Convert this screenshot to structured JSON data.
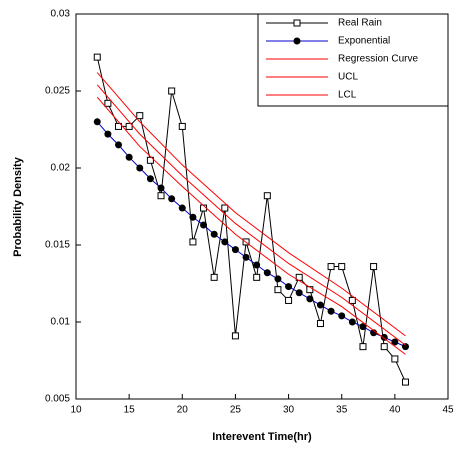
{
  "chart_data": {
    "type": "line",
    "xlabel": "Interevent Time(hr)",
    "ylabel": "Probability Density",
    "xlim": [
      10,
      45
    ],
    "xticks": [
      10,
      15,
      20,
      25,
      30,
      35,
      40,
      45
    ],
    "ylim": [
      0.005,
      0.03
    ],
    "yticks": [
      0.005,
      0.01,
      0.015,
      0.02,
      0.025,
      0.03
    ],
    "series": [
      {
        "name": "Real Rain",
        "color": "#000000",
        "marker": "open-square",
        "x": [
          12,
          13,
          14,
          15,
          16,
          17,
          18,
          19,
          20,
          21,
          22,
          23,
          24,
          25,
          26,
          27,
          28,
          29,
          30,
          31,
          32,
          33,
          34,
          35,
          36,
          37,
          38,
          39,
          40,
          41
        ],
        "values": [
          0.0272,
          0.0242,
          0.0227,
          0.0227,
          0.0234,
          0.0205,
          0.0182,
          0.025,
          0.0227,
          0.0152,
          0.0174,
          0.0129,
          0.0174,
          0.0091,
          0.0152,
          0.0129,
          0.0182,
          0.0121,
          0.0114,
          0.0129,
          0.0121,
          0.0099,
          0.0136,
          0.0136,
          0.0114,
          0.0084,
          0.0136,
          0.0084,
          0.0076,
          0.0061
        ]
      },
      {
        "name": "Exponential",
        "color": "#0000cc",
        "marker": "filled-circle",
        "x": [
          12,
          13,
          14,
          15,
          16,
          17,
          18,
          19,
          20,
          21,
          22,
          23,
          24,
          25,
          26,
          27,
          28,
          29,
          30,
          31,
          32,
          33,
          34,
          35,
          36,
          37,
          38,
          39,
          40,
          41
        ],
        "values": [
          0.023,
          0.0222,
          0.0215,
          0.0207,
          0.02,
          0.0193,
          0.0187,
          0.018,
          0.0174,
          0.0168,
          0.0163,
          0.0157,
          0.0152,
          0.0147,
          0.0142,
          0.0137,
          0.0132,
          0.0128,
          0.0123,
          0.0119,
          0.0115,
          0.0111,
          0.0107,
          0.0104,
          0.01,
          0.0097,
          0.0093,
          0.009,
          0.0087,
          0.0084
        ]
      },
      {
        "name": "Regression Curve",
        "color": "#ff0000",
        "marker": "none",
        "x": [
          12,
          16,
          20,
          25,
          30,
          35,
          41
        ],
        "values": [
          0.0254,
          0.0222,
          0.0195,
          0.0164,
          0.0138,
          0.0116,
          0.0085
        ]
      },
      {
        "name": "UCL",
        "color": "#ff0000",
        "marker": "none",
        "x": [
          12,
          16,
          20,
          25,
          30,
          35,
          41
        ],
        "values": [
          0.0262,
          0.023,
          0.0202,
          0.0171,
          0.0145,
          0.0122,
          0.0091
        ]
      },
      {
        "name": "LCL",
        "color": "#ff0000",
        "marker": "none",
        "x": [
          12,
          16,
          20,
          25,
          30,
          35,
          41
        ],
        "values": [
          0.0246,
          0.0214,
          0.0188,
          0.0157,
          0.0131,
          0.011,
          0.0079
        ]
      }
    ]
  }
}
